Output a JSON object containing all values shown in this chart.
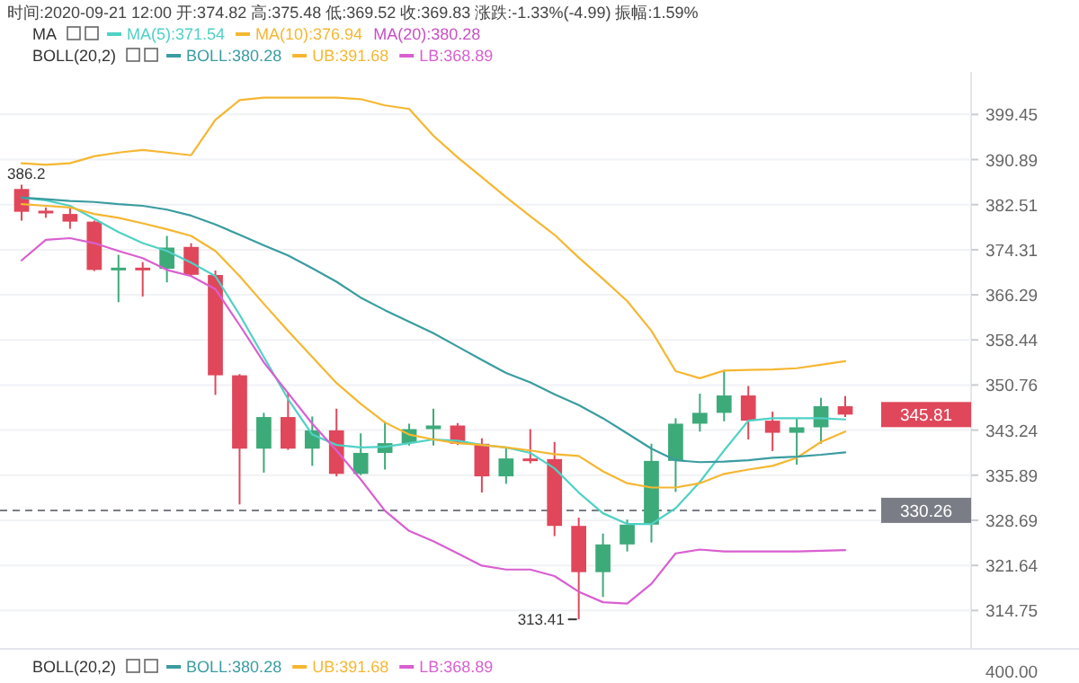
{
  "chart_data": {
    "type": "candlestick",
    "categories": [
      null,
      null,
      null,
      null,
      null,
      null,
      null,
      null,
      null,
      null,
      null,
      null,
      null,
      null,
      null,
      null,
      null,
      null,
      null,
      null,
      null,
      null,
      null,
      null,
      null,
      null,
      null,
      null,
      null,
      null,
      null,
      null,
      null,
      null,
      null
    ],
    "ohlc": [
      [
        385.4,
        386.2,
        379.6,
        381.2
      ],
      [
        381.4,
        382.0,
        380.1,
        380.9
      ],
      [
        380.8,
        381.8,
        378.1,
        379.4
      ],
      [
        379.4,
        379.6,
        370.5,
        370.7
      ],
      [
        370.9,
        373.4,
        365.0,
        371.1
      ],
      [
        371.1,
        372.1,
        366.0,
        370.9
      ],
      [
        370.9,
        376.8,
        368.5,
        374.7
      ],
      [
        374.82,
        375.48,
        369.52,
        369.83
      ],
      [
        369.8,
        370.6,
        349.1,
        352.4
      ],
      [
        352.4,
        352.6,
        331.2,
        340.2
      ],
      [
        340.2,
        346.1,
        336.3,
        345.4
      ],
      [
        345.4,
        349.5,
        340.0,
        340.2
      ],
      [
        340.2,
        345.5,
        337.4,
        343.2
      ],
      [
        343.2,
        346.8,
        335.7,
        336.1
      ],
      [
        336.1,
        342.7,
        335.9,
        339.5
      ],
      [
        339.5,
        344.6,
        336.8,
        341.1
      ],
      [
        341.1,
        344.3,
        340.7,
        343.4
      ],
      [
        343.4,
        346.8,
        340.7,
        344.0
      ],
      [
        344.0,
        344.4,
        340.8,
        341.0
      ],
      [
        341.0,
        341.9,
        333.1,
        335.7
      ],
      [
        335.7,
        340.4,
        334.5,
        338.6
      ],
      [
        338.6,
        343.4,
        337.8,
        338.4
      ],
      [
        338.5,
        341.3,
        326.2,
        327.8
      ],
      [
        327.8,
        329.1,
        313.41,
        320.6
      ],
      [
        320.6,
        326.6,
        316.8,
        324.9
      ],
      [
        324.9,
        328.8,
        323.8,
        328.0
      ],
      [
        328.0,
        341.0,
        325.2,
        338.2
      ],
      [
        338.2,
        345.2,
        333.2,
        344.3
      ],
      [
        344.3,
        349.3,
        343.0,
        346.1
      ],
      [
        346.1,
        353.3,
        344.7,
        349.0
      ],
      [
        349.0,
        350.6,
        341.7,
        344.8
      ],
      [
        344.8,
        346.3,
        339.8,
        342.8
      ],
      [
        342.8,
        345.2,
        337.6,
        343.7
      ],
      [
        343.7,
        348.6,
        341.0,
        347.2
      ],
      [
        347.2,
        348.9,
        345.4,
        345.81
      ]
    ],
    "colors": [
      "#e0475a",
      "#e0475a",
      "#e0475a",
      "#e0475a",
      "#3daa7a",
      "#e0475a",
      "#3daa7a",
      "#e0475a",
      "#e0475a",
      "#e0475a",
      "#3daa7a",
      "#e0475a",
      "#3daa7a",
      "#e0475a",
      "#3daa7a",
      "#3daa7a",
      "#3daa7a",
      "#3daa7a",
      "#e0475a",
      "#e0475a",
      "#3daa7a",
      "#e0475a",
      "#e0475a",
      "#e0475a",
      "#3daa7a",
      "#3daa7a",
      "#3daa7a",
      "#3daa7a",
      "#3daa7a",
      "#3daa7a",
      "#e0475a",
      "#e0475a",
      "#3daa7a",
      "#3daa7a",
      "#e0475a"
    ],
    "series": [
      {
        "name": "MA(5):371.54",
        "type": "line",
        "color": "#4fd1c5",
        "values": [
          383.8,
          383.3,
          382.3,
          379.9,
          377.5,
          375.5,
          374.1,
          372.0,
          369.6,
          362.8,
          355.5,
          348.4,
          342.5,
          340.8,
          340.4,
          340.5,
          341.1,
          341.7,
          341.5,
          340.8,
          340.4,
          339.5,
          337.0,
          333.1,
          329.8,
          328.1,
          328.1,
          330.6,
          334.8,
          339.9,
          344.8,
          345.2,
          345.2,
          345.2,
          345.0
        ]
      },
      {
        "name": "MA(10):376.94",
        "type": "line",
        "color": "#f5b731",
        "values": [
          382.6,
          382.3,
          382.0,
          380.8,
          380.1,
          379.1,
          378.0,
          376.8,
          374.1,
          369.6,
          364.7,
          360.0,
          355.5,
          351.1,
          347.6,
          344.5,
          342.5,
          341.7,
          341.1,
          340.8,
          340.4,
          339.9,
          339.3,
          339.0,
          336.5,
          334.6,
          333.9,
          333.9,
          334.6,
          336.1,
          336.8,
          337.4,
          338.7,
          341.3,
          343.0
        ]
      },
      {
        "name": "BOLL:380.28",
        "type": "line",
        "color": "#3a9ca0",
        "values": [
          383.8,
          383.5,
          383.2,
          383.0,
          382.6,
          382.3,
          381.6,
          380.5,
          378.9,
          377.0,
          375.1,
          373.3,
          371.0,
          368.6,
          365.8,
          363.6,
          361.6,
          359.6,
          357.3,
          355.0,
          352.8,
          351.2,
          349.2,
          347.4,
          345.2,
          342.7,
          340.2,
          338.3,
          338.0,
          338.1,
          338.3,
          338.7,
          338.9,
          339.2,
          339.6
        ]
      },
      {
        "name": "UB:391.68",
        "type": "line",
        "color": "#f5b731",
        "values": [
          390.2,
          389.9,
          390.2,
          391.5,
          392.2,
          392.7,
          392.2,
          391.7,
          398.4,
          402.2,
          402.7,
          402.7,
          402.7,
          402.7,
          402.4,
          401.2,
          400.5,
          395.4,
          391.3,
          387.6,
          383.9,
          380.4,
          377.0,
          372.9,
          369.1,
          365.2,
          360.0,
          353.1,
          351.9,
          353.2,
          353.3,
          353.4,
          353.6,
          354.2,
          354.8
        ]
      },
      {
        "name": "LB:368.89",
        "type": "line",
        "color": "#d95fd0",
        "values": [
          372.4,
          376.1,
          376.4,
          375.5,
          374.1,
          372.8,
          370.7,
          369.6,
          367.3,
          361.0,
          354.6,
          349.4,
          344.3,
          339.9,
          335.2,
          330.2,
          327.0,
          325.4,
          323.5,
          321.6,
          321.0,
          321.0,
          320.0,
          317.6,
          316.0,
          315.8,
          318.8,
          323.5,
          324.1,
          323.8,
          323.8,
          323.8,
          323.8,
          323.9,
          324.0
        ]
      }
    ],
    "log": "y",
    "ylim": [
      309.0,
      407.7
    ],
    "yticks": [
      314.75,
      321.64,
      328.69,
      335.89,
      343.24,
      350.76,
      358.44,
      366.29,
      374.31,
      382.51,
      390.89,
      399.45
    ],
    "grid": "y",
    "legend": "top left",
    "ref_lines": [
      {
        "axis": "y",
        "value": 330.26,
        "label": "330.26",
        "color": "#7a7d85",
        "line_style": "dashed"
      }
    ],
    "annotations": [
      "时间:2020-09-21 12:00 开:374.82 高:375.48 低:369.52 收:369.83 涨跌:-1.33%(-4.99) 振幅:1.59%",
      "MA",
      "BOLL(20,2)",
      "MA(20):380.28",
      {
        "text": "386.2",
        "y": 386.2
      },
      "313.41",
      "345.81",
      "BOLL(20,2)",
      "400.00"
    ]
  }
}
